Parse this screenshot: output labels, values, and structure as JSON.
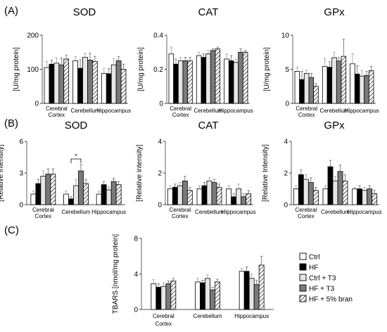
{
  "panel_labels": [
    "(A)",
    "(B)",
    "(C)"
  ],
  "legend": {
    "entries": [
      {
        "label": "Ctrl",
        "pattern": "white"
      },
      {
        "label": "HF",
        "pattern": "black"
      },
      {
        "label": "Ctrl + T3",
        "pattern": "lightgray"
      },
      {
        "label": "HF + T3",
        "pattern": "darkgray"
      },
      {
        "label": "HF + 5% bran",
        "pattern": "hatch"
      }
    ]
  },
  "colors": {
    "white": "#ffffff",
    "black": "#000000",
    "lightgray": "#e6e6e6",
    "darkgray": "#7a7a7a",
    "hatch": "#ffffff"
  },
  "chart_data": [
    {
      "id": "A1",
      "type": "bar",
      "title": "SOD",
      "ylabel": "[U/mg protein]",
      "ylim": [
        0,
        200
      ],
      "yticks": [
        0,
        100,
        200
      ],
      "categories": [
        [
          "Cerebral",
          "Cortex"
        ],
        [
          "Cerebellum"
        ],
        [
          "Hippocampus"
        ]
      ],
      "series": [
        {
          "name": "Ctrl",
          "values": [
            105,
            125,
            88
          ],
          "errors": [
            18,
            12,
            15
          ]
        },
        {
          "name": "HF",
          "values": [
            115,
            103,
            87
          ],
          "errors": [
            12,
            25,
            15
          ]
        },
        {
          "name": "Ctrl + T3",
          "values": [
            118,
            135,
            113
          ],
          "errors": [
            15,
            12,
            18
          ]
        },
        {
          "name": "HF + T3",
          "values": [
            113,
            127,
            125
          ],
          "errors": [
            20,
            20,
            12
          ]
        },
        {
          "name": "HF + 5% bran",
          "values": [
            130,
            123,
            100
          ],
          "errors": [
            12,
            15,
            15
          ]
        }
      ],
      "significance": []
    },
    {
      "id": "A2",
      "type": "bar",
      "title": "CAT",
      "ylabel": "[U/mg protein]",
      "ylim": [
        0,
        0.4
      ],
      "yticks": [
        "0",
        "0.2",
        "0.4"
      ],
      "categories": [
        [
          "Cerebral",
          "Cortex"
        ],
        [
          "Cerebellum"
        ],
        [
          "Hippocampus"
        ]
      ],
      "series": [
        {
          "name": "Ctrl",
          "values": [
            0.29,
            0.28,
            0.26
          ],
          "errors": [
            0.04,
            0.02,
            0.03
          ]
        },
        {
          "name": "HF",
          "values": [
            0.23,
            0.27,
            0.25
          ],
          "errors": [
            0.03,
            0.02,
            0.03
          ]
        },
        {
          "name": "Ctrl + T3",
          "values": [
            0.25,
            0.29,
            0.24
          ],
          "errors": [
            0.02,
            0.02,
            0.02
          ]
        },
        {
          "name": "HF + T3",
          "values": [
            0.25,
            0.31,
            0.3
          ],
          "errors": [
            0.02,
            0.01,
            0.02
          ]
        },
        {
          "name": "HF + 5% bran",
          "values": [
            0.25,
            0.32,
            0.3
          ],
          "errors": [
            0.02,
            0.01,
            0.01
          ]
        }
      ],
      "significance": []
    },
    {
      "id": "A3",
      "type": "bar",
      "title": "GPx",
      "ylabel": "[U/mg protein]",
      "ylim": [
        0,
        10
      ],
      "yticks": [
        0,
        5,
        10
      ],
      "categories": [
        [
          "Cerebral",
          "Cortex"
        ],
        [
          "Cerebellum"
        ],
        [
          "Hippocampus"
        ]
      ],
      "series": [
        {
          "name": "Ctrl",
          "values": [
            4.7,
            5.4,
            5.8
          ],
          "errors": [
            0.6,
            1.2,
            1.5
          ]
        },
        {
          "name": "HF",
          "values": [
            3.5,
            5.3,
            4.3
          ],
          "errors": [
            1.2,
            0.8,
            1.2
          ]
        },
        {
          "name": "Ctrl + T3",
          "values": [
            4.4,
            6.7,
            4.0
          ],
          "errors": [
            0.5,
            0.8,
            0.8
          ]
        },
        {
          "name": "HF + T3",
          "values": [
            3.8,
            6.2,
            4.1
          ],
          "errors": [
            0.6,
            0.5,
            0.6
          ]
        },
        {
          "name": "HF + 5% bran",
          "values": [
            2.5,
            6.9,
            4.8
          ],
          "errors": [
            0.4,
            2.5,
            0.6
          ]
        }
      ],
      "significance": []
    },
    {
      "id": "B1",
      "type": "bar",
      "title": "SOD",
      "ylabel": "[Relative intensity]",
      "ylim": [
        0,
        6
      ],
      "yticks": [
        0,
        3,
        6
      ],
      "categories": [
        [
          "Cerebral",
          "Cortex"
        ],
        [
          "Cerebellum"
        ],
        [
          "Hippocampus"
        ]
      ],
      "series": [
        {
          "name": "Ctrl",
          "values": [
            1.0,
            1.0,
            1.0
          ],
          "errors": [
            0.3,
            0.3,
            0.3
          ]
        },
        {
          "name": "HF",
          "values": [
            2.0,
            0.55,
            1.9
          ],
          "errors": [
            0.4,
            0.2,
            0.3
          ]
        },
        {
          "name": "Ctrl + T3",
          "values": [
            2.7,
            1.8,
            1.4
          ],
          "errors": [
            0.5,
            0.6,
            0.3
          ]
        },
        {
          "name": "HF + T3",
          "values": [
            2.9,
            3.2,
            2.2
          ],
          "errors": [
            0.5,
            0.6,
            0.3
          ]
        },
        {
          "name": "HF + 5% bran",
          "values": [
            2.9,
            2.0,
            1.9
          ],
          "errors": [
            0.5,
            0.4,
            0.3
          ]
        }
      ],
      "significance": [
        {
          "group": 1,
          "from": 1,
          "to": 3,
          "label": "*"
        }
      ]
    },
    {
      "id": "B2",
      "type": "bar",
      "title": "CAT",
      "ylabel": "[Relative intensity]",
      "ylim": [
        0,
        4
      ],
      "yticks": [
        0,
        2,
        4
      ],
      "categories": [
        [
          "Cerebral",
          "Cortex"
        ],
        [
          "Cerebellum"
        ],
        [
          "Hippocampus"
        ]
      ],
      "series": [
        {
          "name": "Ctrl",
          "values": [
            1.0,
            1.0,
            1.0
          ],
          "errors": [
            0.2,
            0.2,
            0.2
          ]
        },
        {
          "name": "HF",
          "values": [
            1.1,
            1.2,
            0.5
          ],
          "errors": [
            0.2,
            0.2,
            0.2
          ]
        },
        {
          "name": "Ctrl + T3",
          "values": [
            1.2,
            1.5,
            1.0
          ],
          "errors": [
            0.2,
            0.2,
            0.3
          ]
        },
        {
          "name": "HF + T3",
          "values": [
            1.5,
            1.4,
            0.5
          ],
          "errors": [
            0.3,
            0.2,
            0.2
          ]
        },
        {
          "name": "HF + 5% bran",
          "values": [
            0.9,
            1.1,
            0.7
          ],
          "errors": [
            0.2,
            0.2,
            0.2
          ]
        }
      ],
      "significance": []
    },
    {
      "id": "B3",
      "type": "bar",
      "title": "GPx",
      "ylabel": "[Relative Intensity]",
      "ylim": [
        0,
        4
      ],
      "yticks": [
        0,
        2,
        4
      ],
      "categories": [
        [
          "Cerebral",
          "Cortex"
        ],
        [
          "Cerebellum"
        ],
        [
          "Hippocampus"
        ]
      ],
      "series": [
        {
          "name": "Ctrl",
          "values": [
            1.0,
            1.0,
            1.0
          ],
          "errors": [
            0.2,
            0.2,
            0.1
          ]
        },
        {
          "name": "HF",
          "values": [
            1.9,
            2.4,
            1.0
          ],
          "errors": [
            0.3,
            0.4,
            0.2
          ]
        },
        {
          "name": "Ctrl + T3",
          "values": [
            1.6,
            1.5,
            0.9
          ],
          "errors": [
            0.3,
            0.3,
            0.2
          ]
        },
        {
          "name": "HF + T3",
          "values": [
            1.4,
            2.1,
            1.0
          ],
          "errors": [
            0.3,
            0.4,
            0.2
          ]
        },
        {
          "name": "HF + 5% bran",
          "values": [
            0.9,
            1.5,
            0.7
          ],
          "errors": [
            0.2,
            0.4,
            0.2
          ]
        }
      ],
      "significance": []
    },
    {
      "id": "C",
      "type": "bar",
      "title": "",
      "ylabel": "TBARS [nmol/mg protein]",
      "ylim": [
        0,
        8
      ],
      "yticks": [
        0,
        4,
        8
      ],
      "categories": [
        [
          "Cerebral",
          "Cortex"
        ],
        [
          "Cerebellum"
        ],
        [
          "Hippocampus"
        ]
      ],
      "series": [
        {
          "name": "Ctrl",
          "values": [
            2.9,
            3.1,
            4.3
          ],
          "errors": [
            0.5,
            0.4,
            0.3
          ]
        },
        {
          "name": "HF",
          "values": [
            2.5,
            3.0,
            4.3
          ],
          "errors": [
            0.4,
            0.3,
            0.5
          ]
        },
        {
          "name": "Ctrl + T3",
          "values": [
            2.6,
            3.5,
            3.5
          ],
          "errors": [
            0.4,
            0.4,
            0.5
          ]
        },
        {
          "name": "HF + T3",
          "values": [
            2.9,
            2.2,
            2.8
          ],
          "errors": [
            0.3,
            0.3,
            0.5
          ]
        },
        {
          "name": "HF + 5% bran",
          "values": [
            3.2,
            3.1,
            5.0
          ],
          "errors": [
            0.3,
            0.3,
            1.0
          ]
        }
      ],
      "significance": []
    }
  ]
}
